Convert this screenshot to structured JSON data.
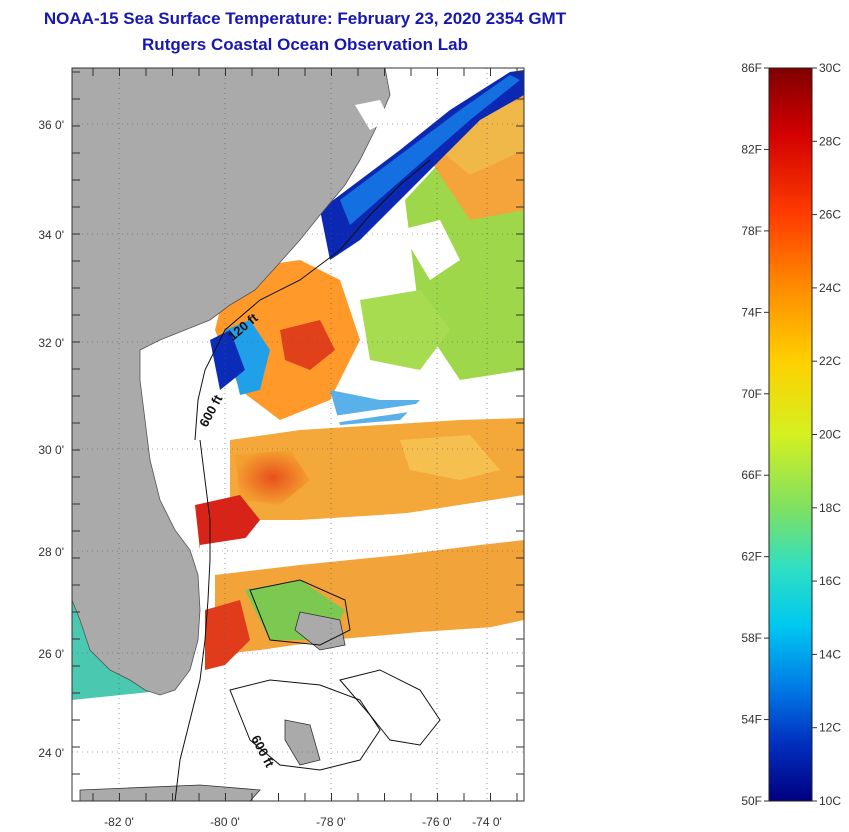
{
  "title": {
    "line1": "NOAA-15 Sea Surface Temperature:  February 23, 2020 2354 GMT",
    "line2": "Rutgers Coastal Ocean Observation Lab"
  },
  "map": {
    "lon_ticks": [
      "-82 0'",
      "-80 0'",
      "-78 0'",
      "-76 0'",
      "-74 0'"
    ],
    "lat_ticks": [
      "36 0'",
      "34 0'",
      "32 0'",
      "30 0'",
      "28 0'",
      "26 0'",
      "24 0'"
    ],
    "contour_labels": [
      "120 ft",
      "600 ft",
      "600 ft"
    ],
    "colors": {
      "land": "#aaaaaa",
      "cloud": "#ffffff",
      "cold": "#0a28b4",
      "warm": "#f2a43a",
      "hot": "#e02818"
    }
  },
  "colorbar": {
    "fahrenheit_labels": [
      "86F",
      "82F",
      "78F",
      "74F",
      "70F",
      "66F",
      "62F",
      "58F",
      "54F",
      "50F"
    ],
    "celsius_labels": [
      "30C",
      "28C",
      "26C",
      "24C",
      "22C",
      "20C",
      "18C",
      "16C",
      "14C",
      "12C",
      "10C"
    ],
    "range_f": [
      50,
      86
    ],
    "range_c": [
      10,
      30
    ],
    "stops": [
      "#800000",
      "#d20000",
      "#ff3c00",
      "#ff8c00",
      "#ffd000",
      "#d4f020",
      "#80e060",
      "#30e0c0",
      "#00c8f0",
      "#0080e8",
      "#0030c0",
      "#000080"
    ]
  }
}
